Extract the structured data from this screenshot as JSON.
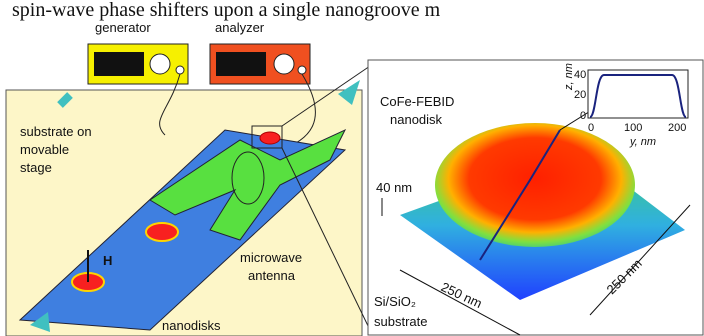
{
  "caption": "spin-wave phase shifters upon a single nanogroove m",
  "left_panel": {
    "generator": "generator",
    "analyzer": "analyzer",
    "substrate_label": [
      "substrate on",
      "movable",
      "stage"
    ],
    "field_label": "H",
    "nanodisks_label": "nanodisks",
    "antenna_label": [
      "microwave",
      "antenna"
    ]
  },
  "right_panel": {
    "nanodisk_label": [
      "CoFe-FEBID",
      "nanodisk"
    ],
    "height_scale": "40 nm",
    "width_x": "250 nm",
    "width_y": "250 nm",
    "substrate_label": [
      "Si/SiO₂",
      "substrate"
    ],
    "inset": {
      "y_label": "z, nm",
      "x_label": "y, nm",
      "yticks": [
        40,
        20,
        0
      ],
      "xticks": [
        0,
        100,
        200
      ]
    }
  }
}
